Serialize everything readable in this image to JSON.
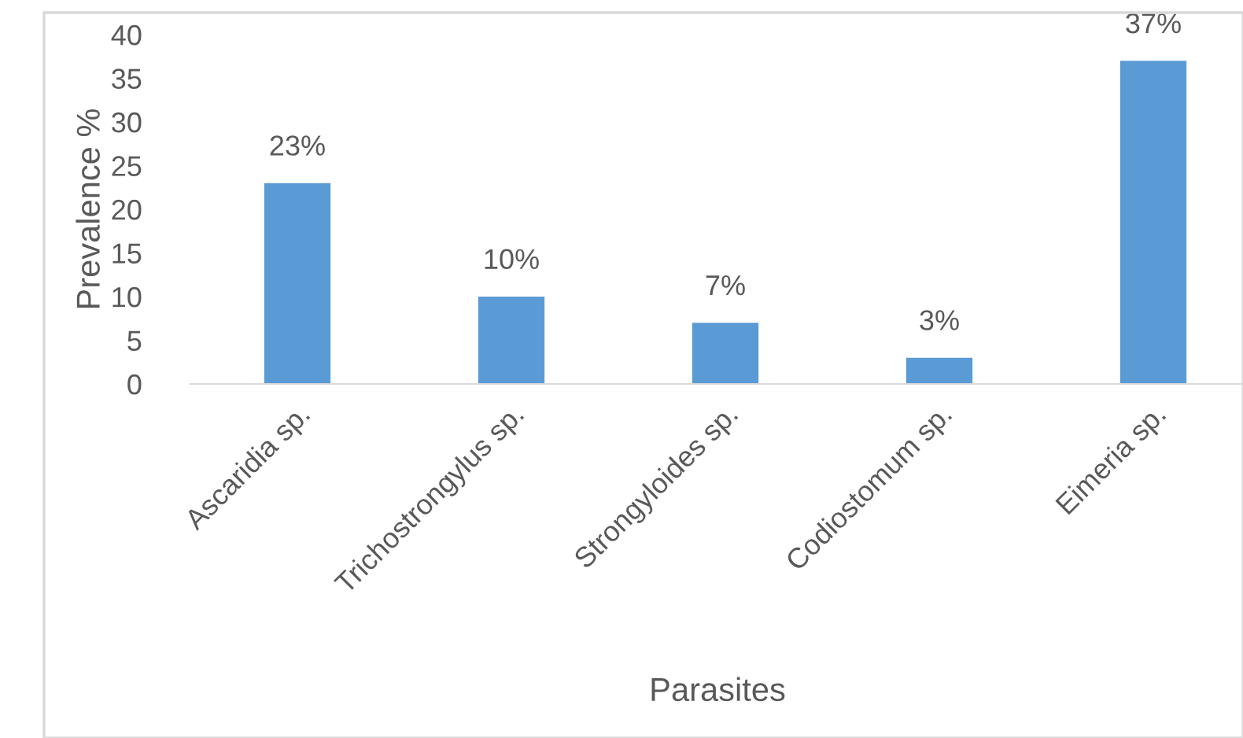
{
  "chart_data": {
    "type": "bar",
    "xlabel": "Parasites",
    "ylabel": "Prevalence %",
    "categories": [
      "Ascaridia sp.",
      "Trichostrongylus sp.",
      "Strongyloides sp.",
      "Codiostomum sp.",
      "Eimeria sp."
    ],
    "values": [
      23,
      10,
      7,
      3,
      37
    ],
    "value_labels": [
      "23%",
      "10%",
      "7%",
      "3%",
      "37%"
    ],
    "color": "#5b9bd5",
    "ylim": [
      0,
      40
    ],
    "yticks": [
      0,
      5,
      10,
      15,
      20,
      25,
      30,
      35,
      40
    ],
    "grid": false
  }
}
